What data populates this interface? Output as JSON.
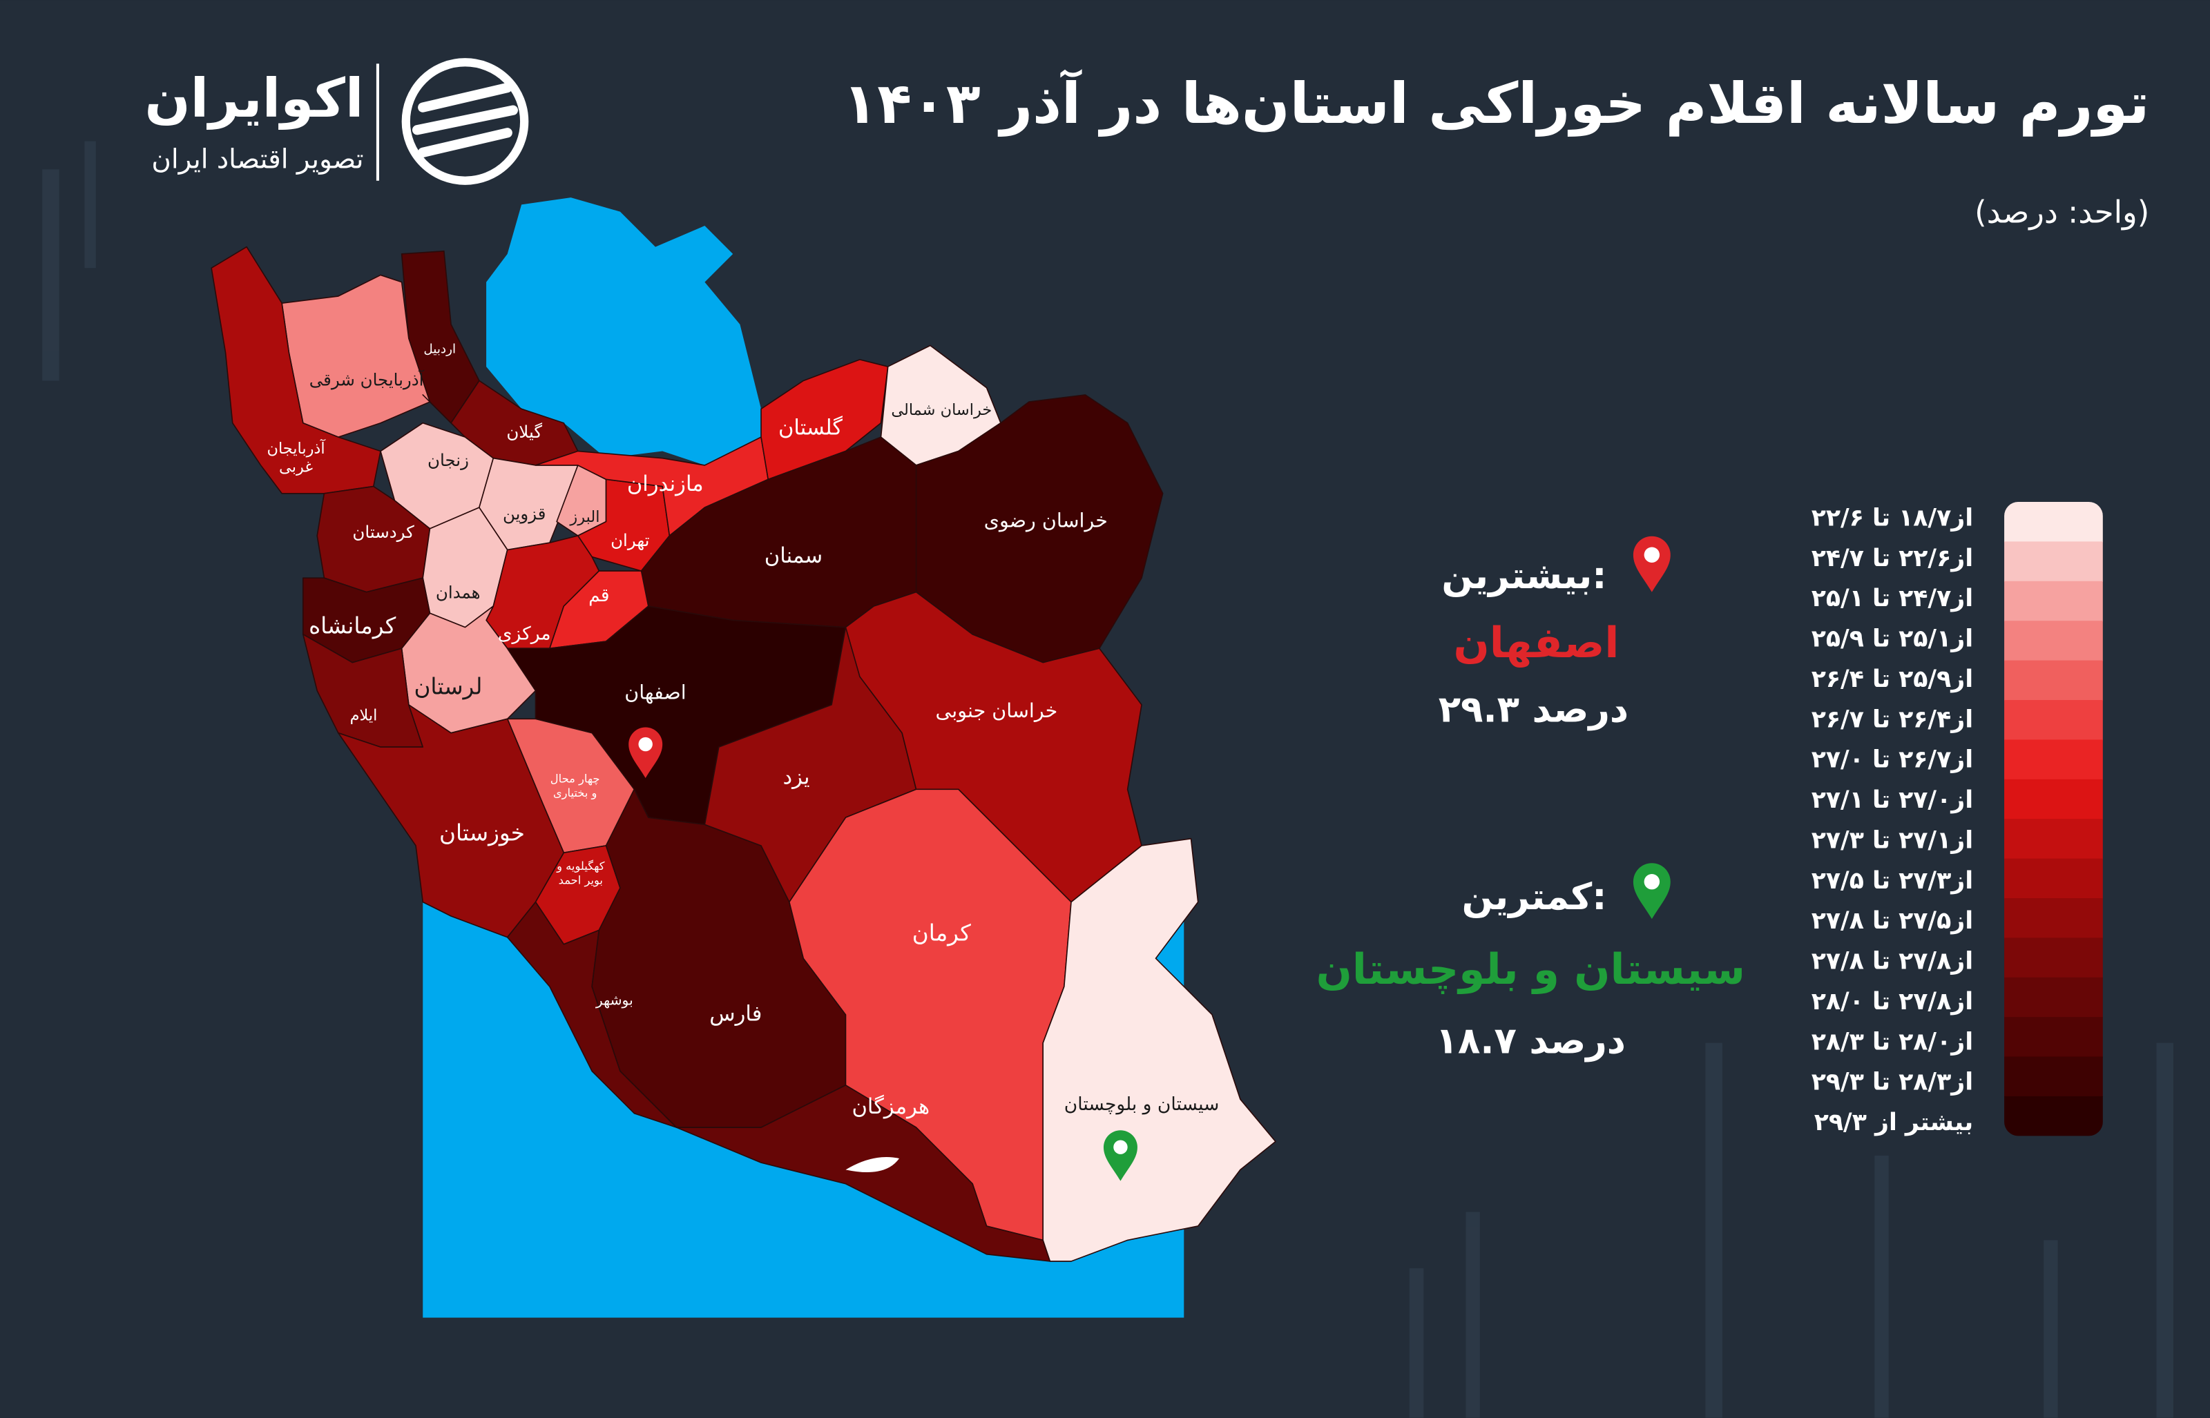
{
  "header": {
    "title": "تورم سالانه اقلام خوراکی استان‌ها در آذر ۱۴۰۳",
    "subtitle": "(واحد: درصد)"
  },
  "logo": {
    "name": "اکوایران",
    "tagline": "تصویر اقتصاد ایران"
  },
  "highlights": {
    "highest": {
      "heading": "بیشترین:",
      "province": "اصفهان",
      "value": "۲۹.۳ درصد",
      "color": "#e0262a"
    },
    "lowest": {
      "heading": "کمترین:",
      "province": "سیستان و بلوچستان",
      "value": "۱۸.۷ درصد",
      "color": "#1f9e3a"
    }
  },
  "legend": {
    "items": [
      {
        "label": "از۱۸/۷ تا ۲۲/۶",
        "color": "#fde8e6"
      },
      {
        "label": "از۲۲/۶ تا ۲۴/۷",
        "color": "#f9c4c2"
      },
      {
        "label": "از۲۴/۷ تا ۲۵/۱",
        "color": "#f6a2a0"
      },
      {
        "label": "از۲۵/۱ تا ۲۵/۹",
        "color": "#f38280"
      },
      {
        "label": "از۲۵/۹ تا ۲۶/۴",
        "color": "#f0605e"
      },
      {
        "label": "از۲۶/۴ تا ۲۶/۷",
        "color": "#ee4040"
      },
      {
        "label": "از۲۶/۷ تا ۲۷/۰",
        "color": "#ea2424"
      },
      {
        "label": "از۲۷/۰ تا ۲۷/۱",
        "color": "#dc1414"
      },
      {
        "label": "از۲۷/۱ تا ۲۷/۳",
        "color": "#c41010"
      },
      {
        "label": "از۲۷/۳ تا ۲۷/۵",
        "color": "#ac0c0c"
      },
      {
        "label": "از۲۷/۵ تا ۲۷/۸",
        "color": "#940a0a"
      },
      {
        "label": "از۲۷/۸ تا ۲۷/۸",
        "color": "#7c0808"
      },
      {
        "label": "از۲۷/۸ تا ۲۸/۰",
        "color": "#660606"
      },
      {
        "label": "از۲۸/۰ تا ۲۸/۳",
        "color": "#520404"
      },
      {
        "label": "از۲۸/۳ تا ۲۹/۳",
        "color": "#3e0202"
      },
      {
        "label": "بیشتر از ۲۹/۳",
        "color": "#2b0000"
      }
    ]
  },
  "provinces": [
    {
      "label": "اردبیل",
      "color": "#520404"
    },
    {
      "label": "آذربایجان شرقی",
      "color": "#f38280"
    },
    {
      "label": [
        "آذربایجان",
        "غربی"
      ],
      "color": "#ac0c0c"
    },
    {
      "label": "گیلان",
      "color": "#7c0808"
    },
    {
      "label": "زنجان",
      "color": "#f9c4c2"
    },
    {
      "label": "قزوین",
      "color": "#f9c4c2"
    },
    {
      "label": "البرز",
      "color": "#f6a2a0"
    },
    {
      "label": "تهران",
      "color": "#dc1414"
    },
    {
      "label": "مازندران",
      "color": "#ea2424"
    },
    {
      "label": "گلستان",
      "color": "#dc1414"
    },
    {
      "label": "خراسان شمالی",
      "color": "#fde8e6"
    },
    {
      "label": "خراسان رضوی",
      "color": "#3e0202"
    },
    {
      "label": "سمنان",
      "color": "#3e0202"
    },
    {
      "label": "کردستان",
      "color": "#7c0808"
    },
    {
      "label": "همدان",
      "color": "#f9c4c2"
    },
    {
      "label": "مرکزی",
      "color": "#c41010"
    },
    {
      "label": "قم",
      "color": "#ea2424"
    },
    {
      "label": "کرمانشاه",
      "color": "#520404"
    },
    {
      "label": "لرستان",
      "color": "#f6a2a0"
    },
    {
      "label": "ایلام",
      "color": "#7c0808"
    },
    {
      "label": "اصفهان",
      "color": "#2b0000"
    },
    {
      "label": [
        "چهار محال",
        "و بختیاری"
      ],
      "color": "#f0605e"
    },
    {
      "label": "خوزستان",
      "color": "#940a0a"
    },
    {
      "label": [
        "کهگیلویه و",
        "بویر احمد"
      ],
      "color": "#c41010"
    },
    {
      "label": "بوشهر",
      "color": "#660606"
    },
    {
      "label": "فارس",
      "color": "#520404"
    },
    {
      "label": "یزد",
      "color": "#940a0a"
    },
    {
      "label": "خراسان جنوبی",
      "color": "#ac0c0c"
    },
    {
      "label": "کرمان",
      "color": "#ee4040"
    },
    {
      "label": "هرمزگان",
      "color": "#660606"
    },
    {
      "label": "سیستان و بلوچستان",
      "color": "#fde8e6"
    }
  ]
}
